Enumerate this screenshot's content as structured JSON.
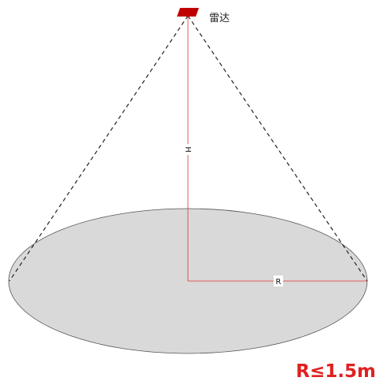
{
  "device_label": "雷达",
  "height_label": "H",
  "radius_label": "R",
  "constraint": "R≤1.5m"
}
